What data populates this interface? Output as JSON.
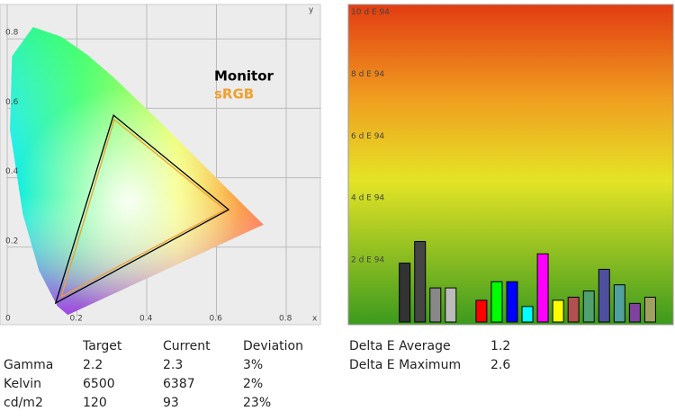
{
  "chart_data": [
    {
      "type": "gamut",
      "xlabel": "x",
      "ylabel": "y",
      "xlim": [
        0,
        0.9
      ],
      "ylim": [
        0,
        0.9
      ],
      "xticks": [
        0,
        0.2,
        0.4,
        0.6,
        0.8
      ],
      "yticks": [
        0.2,
        0.4,
        0.6,
        0.8
      ],
      "grid": true,
      "series": [
        {
          "name": "Monitor",
          "color": "#000000",
          "x": [
            0.305,
            0.635,
            0.139
          ],
          "values": [
            0.58,
            0.308,
            0.039
          ]
        },
        {
          "name": "sRGB",
          "color": "#f0a030",
          "x": [
            0.307,
            0.625,
            0.155
          ],
          "values": [
            0.567,
            0.308,
            0.057
          ]
        }
      ]
    },
    {
      "type": "bar",
      "ylim": [
        0,
        10.25
      ],
      "yticks": [
        {
          "value": 2,
          "label": "2 d E 94"
        },
        {
          "value": 4,
          "label": "4 d E 94"
        },
        {
          "value": 6,
          "label": "6 d E 94"
        },
        {
          "value": 8,
          "label": "8 d E 94"
        },
        {
          "value": 10,
          "label": "10 d E 94"
        }
      ],
      "categories": [
        null,
        null,
        null,
        null,
        null,
        null,
        null,
        null,
        null,
        null,
        null,
        null,
        null,
        null,
        null,
        null,
        null,
        null,
        null,
        null,
        null
      ],
      "values": [
        null,
        null,
        null,
        1.9,
        2.6,
        1.1,
        1.1,
        null,
        0.7,
        1.3,
        1.3,
        0.5,
        2.2,
        0.7,
        0.8,
        1.0,
        1.7,
        1.2,
        0.6,
        0.8,
        null
      ],
      "colors": [
        null,
        null,
        null,
        "#333333",
        "#444444",
        "#888888",
        "#bbbbbb",
        null,
        "#ff0000",
        "#00ff00",
        "#0000ff",
        "#00ffff",
        "#ff00ff",
        "#ffff00",
        "#b05050",
        "#50a070",
        "#5050a0",
        "#50a0a0",
        "#8040a0",
        "#a0a060",
        null
      ]
    }
  ],
  "table": {
    "headers": [
      "Target",
      "Current",
      "Deviation"
    ],
    "rows": [
      [
        "Gamma",
        "2.2",
        "2.3",
        "3%"
      ],
      [
        "Kelvin",
        "6500",
        "6387",
        "2%"
      ],
      [
        "cd/m2",
        "120",
        "93",
        "23%"
      ]
    ],
    "value_colors": [
      "#3aa23a",
      "#3aa23a",
      "#f08a20"
    ]
  },
  "delta": {
    "rows": [
      [
        "Delta E Average",
        "1.2"
      ],
      [
        "Delta E Maximum",
        "2.6"
      ]
    ],
    "value_color": "#3aa23a"
  }
}
